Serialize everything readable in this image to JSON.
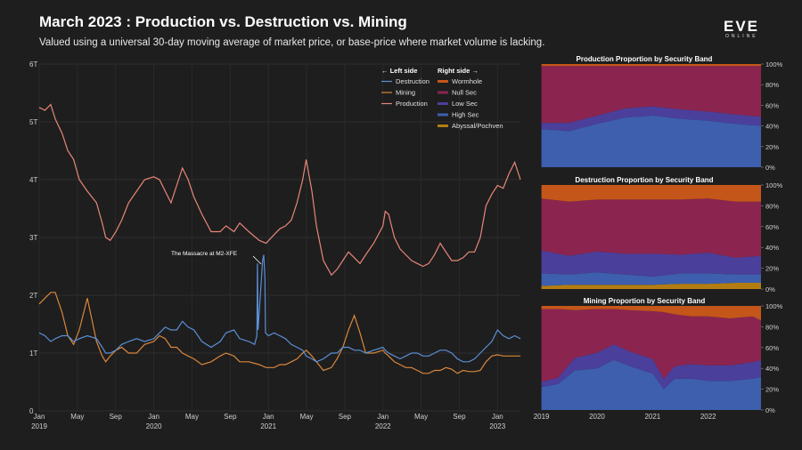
{
  "header": {
    "title": "March 2023 : Production vs. Destruction vs. Mining",
    "subtitle": "Valued using a universal 30-day moving average of market price, or base-price where market volume is lacking.",
    "logo_main": "EVE",
    "logo_sub": "ONLINE"
  },
  "legend": {
    "left_header": "← Left side",
    "right_header": "Right side →",
    "left_items": [
      {
        "label": "Destruction",
        "color": "#5b8fd6"
      },
      {
        "label": "Mining",
        "color": "#d9873a"
      },
      {
        "label": "Production",
        "color": "#e8867a"
      }
    ],
    "right_items": [
      {
        "label": "Wormhole",
        "color": "#c4561a"
      },
      {
        "label": "Null Sec",
        "color": "#8b2550"
      },
      {
        "label": "Low Sec",
        "color": "#4b3f9c"
      },
      {
        "label": "High Sec",
        "color": "#3d5fae"
      },
      {
        "label": "Abyssal/Pochven",
        "color": "#b37d12"
      }
    ]
  },
  "annotation": "The Massacre at M2-XFE",
  "chart_data": [
    {
      "type": "line",
      "title": "",
      "x_ticks": [
        {
          "top": "Jan",
          "bottom": "2019"
        },
        {
          "top": "May",
          "bottom": ""
        },
        {
          "top": "Sep",
          "bottom": ""
        },
        {
          "top": "Jan",
          "bottom": "2020"
        },
        {
          "top": "May",
          "bottom": ""
        },
        {
          "top": "Sep",
          "bottom": ""
        },
        {
          "top": "Jan",
          "bottom": "2021"
        },
        {
          "top": "May",
          "bottom": ""
        },
        {
          "top": "Sep",
          "bottom": ""
        },
        {
          "top": "Jan",
          "bottom": "2022"
        },
        {
          "top": "May",
          "bottom": ""
        },
        {
          "top": "Sep",
          "bottom": ""
        },
        {
          "top": "Jan",
          "bottom": "2023"
        }
      ],
      "y_ticks": [
        "0",
        "1T",
        "2T",
        "3T",
        "4T",
        "5T",
        "6T"
      ],
      "ylim": [
        0,
        6
      ],
      "xlim": [
        2019.0,
        2023.2
      ],
      "grid": true,
      "series": [
        {
          "name": "Production",
          "color": "#e8867a",
          "x": [
            2019.0,
            2019.05,
            2019.1,
            2019.14,
            2019.2,
            2019.25,
            2019.3,
            2019.35,
            2019.42,
            2019.5,
            2019.55,
            2019.58,
            2019.62,
            2019.67,
            2019.72,
            2019.78,
            2019.85,
            2019.92,
            2020.0,
            2020.05,
            2020.1,
            2020.15,
            2020.2,
            2020.25,
            2020.3,
            2020.35,
            2020.42,
            2020.5,
            2020.58,
            2020.63,
            2020.7,
            2020.75,
            2020.83,
            2020.92,
            2020.98,
            2021.05,
            2021.1,
            2021.15,
            2021.2,
            2021.25,
            2021.3,
            2021.33,
            2021.38,
            2021.42,
            2021.48,
            2021.55,
            2021.6,
            2021.65,
            2021.7,
            2021.75,
            2021.8,
            2021.85,
            2021.92,
            2022.0,
            2022.02,
            2022.05,
            2022.1,
            2022.15,
            2022.2,
            2022.25,
            2022.3,
            2022.35,
            2022.4,
            2022.45,
            2022.5,
            2022.55,
            2022.6,
            2022.65,
            2022.7,
            2022.75,
            2022.8,
            2022.85,
            2022.9,
            2022.95,
            2023.0,
            2023.05,
            2023.1,
            2023.15,
            2023.2
          ],
          "y": [
            5.25,
            5.2,
            5.3,
            5.05,
            4.8,
            4.5,
            4.35,
            4.0,
            3.8,
            3.6,
            3.25,
            3.0,
            2.95,
            3.1,
            3.3,
            3.6,
            3.8,
            4.0,
            4.05,
            4.0,
            3.8,
            3.6,
            3.9,
            4.2,
            4.0,
            3.7,
            3.4,
            3.1,
            3.1,
            3.2,
            3.1,
            3.25,
            3.1,
            2.95,
            2.9,
            3.05,
            3.15,
            3.2,
            3.3,
            3.6,
            4.0,
            4.35,
            3.8,
            3.2,
            2.6,
            2.35,
            2.45,
            2.6,
            2.75,
            2.65,
            2.55,
            2.7,
            2.9,
            3.2,
            3.45,
            3.4,
            3.0,
            2.8,
            2.7,
            2.6,
            2.55,
            2.5,
            2.55,
            2.7,
            2.9,
            2.75,
            2.6,
            2.6,
            2.65,
            2.75,
            2.75,
            3.0,
            3.55,
            3.75,
            3.9,
            3.85,
            4.1,
            4.3,
            4.0
          ]
        },
        {
          "name": "Mining",
          "color": "#d9873a",
          "x": [
            2019.0,
            2019.05,
            2019.1,
            2019.14,
            2019.2,
            2019.25,
            2019.3,
            2019.35,
            2019.42,
            2019.5,
            2019.55,
            2019.58,
            2019.62,
            2019.67,
            2019.72,
            2019.78,
            2019.85,
            2019.92,
            2020.0,
            2020.05,
            2020.1,
            2020.15,
            2020.2,
            2020.25,
            2020.3,
            2020.35,
            2020.42,
            2020.5,
            2020.58,
            2020.63,
            2020.7,
            2020.75,
            2020.83,
            2020.92,
            2020.98,
            2021.05,
            2021.1,
            2021.15,
            2021.2,
            2021.25,
            2021.3,
            2021.33,
            2021.38,
            2021.42,
            2021.48,
            2021.55,
            2021.6,
            2021.65,
            2021.7,
            2021.75,
            2021.8,
            2021.85,
            2021.92,
            2022.0,
            2022.02,
            2022.05,
            2022.1,
            2022.15,
            2022.2,
            2022.25,
            2022.3,
            2022.35,
            2022.4,
            2022.45,
            2022.5,
            2022.55,
            2022.6,
            2022.65,
            2022.7,
            2022.75,
            2022.8,
            2022.85,
            2022.9,
            2022.95,
            2023.0,
            2023.05,
            2023.1,
            2023.15,
            2023.2
          ],
          "y": [
            1.85,
            1.95,
            2.05,
            2.05,
            1.7,
            1.3,
            1.15,
            1.4,
            1.95,
            1.2,
            0.95,
            0.85,
            0.95,
            1.05,
            1.1,
            1.0,
            1.0,
            1.15,
            1.2,
            1.3,
            1.25,
            1.1,
            1.1,
            1.0,
            0.95,
            0.9,
            0.8,
            0.85,
            0.95,
            1.0,
            0.95,
            0.85,
            0.85,
            0.8,
            0.75,
            0.75,
            0.8,
            0.8,
            0.85,
            0.9,
            1.0,
            1.05,
            0.95,
            0.85,
            0.7,
            0.75,
            0.9,
            1.1,
            1.4,
            1.65,
            1.35,
            1.0,
            1.0,
            1.05,
            1.0,
            0.95,
            0.85,
            0.8,
            0.75,
            0.75,
            0.7,
            0.65,
            0.65,
            0.7,
            0.7,
            0.75,
            0.72,
            0.65,
            0.7,
            0.68,
            0.68,
            0.7,
            0.85,
            0.95,
            0.97,
            0.95,
            0.95,
            0.95,
            0.95
          ]
        },
        {
          "name": "Destruction",
          "color": "#5b8fd6",
          "x": [
            2019.0,
            2019.05,
            2019.1,
            2019.14,
            2019.2,
            2019.25,
            2019.3,
            2019.35,
            2019.42,
            2019.5,
            2019.55,
            2019.58,
            2019.62,
            2019.67,
            2019.72,
            2019.78,
            2019.85,
            2019.92,
            2020.0,
            2020.05,
            2020.1,
            2020.15,
            2020.2,
            2020.25,
            2020.3,
            2020.35,
            2020.42,
            2020.5,
            2020.58,
            2020.63,
            2020.7,
            2020.75,
            2020.83,
            2020.88,
            2020.9,
            2020.905,
            2020.91,
            2020.95,
            2020.96,
            2020.97,
            2020.975,
            2021.0,
            2021.05,
            2021.1,
            2021.15,
            2021.2,
            2021.25,
            2021.3,
            2021.33,
            2021.38,
            2021.42,
            2021.48,
            2021.55,
            2021.6,
            2021.65,
            2021.7,
            2021.75,
            2021.8,
            2021.85,
            2021.92,
            2022.0,
            2022.02,
            2022.05,
            2022.1,
            2022.15,
            2022.2,
            2022.25,
            2022.3,
            2022.35,
            2022.4,
            2022.45,
            2022.5,
            2022.55,
            2022.6,
            2022.65,
            2022.7,
            2022.75,
            2022.8,
            2022.85,
            2022.9,
            2022.95,
            2023.0,
            2023.05,
            2023.1,
            2023.15,
            2023.2
          ],
          "y": [
            1.35,
            1.3,
            1.2,
            1.25,
            1.3,
            1.3,
            1.2,
            1.25,
            1.3,
            1.25,
            1.1,
            1.0,
            1.0,
            1.05,
            1.15,
            1.2,
            1.25,
            1.2,
            1.25,
            1.35,
            1.45,
            1.4,
            1.4,
            1.55,
            1.45,
            1.4,
            1.2,
            1.1,
            1.2,
            1.35,
            1.4,
            1.25,
            1.2,
            1.15,
            1.3,
            2.55,
            1.4,
            2.6,
            2.7,
            2.3,
            1.35,
            1.3,
            1.35,
            1.3,
            1.25,
            1.15,
            1.1,
            1.05,
            0.95,
            0.9,
            0.85,
            0.9,
            1.0,
            1.0,
            1.1,
            1.1,
            1.05,
            1.05,
            1.0,
            1.05,
            1.1,
            1.05,
            1.0,
            0.95,
            0.9,
            0.95,
            1.0,
            1.0,
            0.95,
            0.95,
            1.0,
            1.05,
            1.05,
            1.0,
            0.9,
            0.85,
            0.85,
            0.9,
            1.0,
            1.1,
            1.2,
            1.4,
            1.3,
            1.25,
            1.3,
            1.25
          ]
        }
      ]
    },
    {
      "type": "area",
      "title": "Production Proportion by Security Band",
      "x_ticks": [
        "2019",
        "2020",
        "2021",
        "2022"
      ],
      "y_ticks": [
        "0%",
        "20%",
        "40%",
        "60%",
        "80%",
        "100%"
      ],
      "ylim": [
        0,
        100
      ],
      "stack_order": [
        "High Sec",
        "Low Sec",
        "Null Sec",
        "Wormhole"
      ],
      "x": [
        2019.0,
        2019.5,
        2020.0,
        2020.5,
        2021.0,
        2021.5,
        2022.0,
        2022.5,
        2023.0,
        2023.2
      ],
      "series": [
        {
          "name": "High Sec",
          "color": "#3d5fae",
          "values": [
            37,
            35,
            42,
            48,
            50,
            47,
            45,
            42,
            40,
            38
          ]
        },
        {
          "name": "Low Sec",
          "color": "#4b3f9c",
          "values": [
            6,
            8,
            8,
            9,
            9,
            9,
            9,
            9,
            9,
            9
          ]
        },
        {
          "name": "Null Sec",
          "color": "#8b2550",
          "values": [
            55,
            55,
            48,
            41,
            39,
            42,
            44,
            47,
            49,
            51
          ]
        },
        {
          "name": "Wormhole",
          "color": "#c4561a",
          "values": [
            2,
            2,
            2,
            2,
            2,
            2,
            2,
            2,
            2,
            2
          ]
        }
      ]
    },
    {
      "type": "area",
      "title": "Destruction Proportion by Security Band",
      "x_ticks": [
        "2019",
        "2020",
        "2021",
        "2022"
      ],
      "y_ticks": [
        "0%",
        "20%",
        "40%",
        "60%",
        "80%",
        "100%"
      ],
      "ylim": [
        0,
        100
      ],
      "stack_order": [
        "Abyssal/Pochven",
        "High Sec",
        "Low Sec",
        "Null Sec",
        "Wormhole"
      ],
      "x": [
        2019.0,
        2019.5,
        2020.0,
        2020.5,
        2021.0,
        2021.5,
        2022.0,
        2022.5,
        2023.0,
        2023.2
      ],
      "series": [
        {
          "name": "Abyssal/Pochven",
          "color": "#b37d12",
          "values": [
            3,
            4,
            4,
            4,
            4,
            5,
            5,
            6,
            6,
            7
          ]
        },
        {
          "name": "High Sec",
          "color": "#3d5fae",
          "values": [
            12,
            10,
            12,
            10,
            8,
            10,
            10,
            8,
            8,
            8
          ]
        },
        {
          "name": "Low Sec",
          "color": "#4b3f9c",
          "values": [
            22,
            18,
            20,
            20,
            22,
            18,
            20,
            16,
            18,
            18
          ]
        },
        {
          "name": "Null Sec",
          "color": "#8b2550",
          "values": [
            50,
            52,
            50,
            52,
            52,
            53,
            52,
            54,
            52,
            52
          ]
        },
        {
          "name": "Wormhole",
          "color": "#c4561a",
          "values": [
            13,
            16,
            14,
            14,
            14,
            14,
            13,
            16,
            16,
            15
          ]
        }
      ]
    },
    {
      "type": "area",
      "title": "Mining Proportion by Security Band",
      "x_ticks": [
        "2019",
        "2020",
        "2021",
        "2022"
      ],
      "y_ticks": [
        "0%",
        "20%",
        "40%",
        "60%",
        "80%",
        "100%"
      ],
      "ylim": [
        0,
        100
      ],
      "stack_order": [
        "High Sec",
        "Low Sec",
        "Null Sec",
        "Wormhole"
      ],
      "x": [
        2019.0,
        2019.3,
        2019.6,
        2020.0,
        2020.3,
        2020.6,
        2021.0,
        2021.2,
        2021.4,
        2021.7,
        2022.0,
        2022.4,
        2022.8,
        2023.2
      ],
      "series": [
        {
          "name": "High Sec",
          "color": "#3d5fae",
          "values": [
            22,
            25,
            38,
            40,
            48,
            42,
            35,
            20,
            30,
            30,
            28,
            28,
            30,
            32
          ]
        },
        {
          "name": "Low Sec",
          "color": "#4b3f9c",
          "values": [
            5,
            6,
            12,
            15,
            15,
            14,
            14,
            10,
            12,
            14,
            15,
            15,
            16,
            16
          ]
        },
        {
          "name": "Null Sec",
          "color": "#8b2550",
          "values": [
            70,
            66,
            46,
            42,
            34,
            40,
            46,
            64,
            50,
            46,
            47,
            45,
            44,
            38
          ]
        },
        {
          "name": "Wormhole",
          "color": "#c4561a",
          "values": [
            3,
            3,
            4,
            3,
            3,
            4,
            5,
            6,
            8,
            10,
            10,
            12,
            10,
            14
          ]
        }
      ]
    }
  ]
}
